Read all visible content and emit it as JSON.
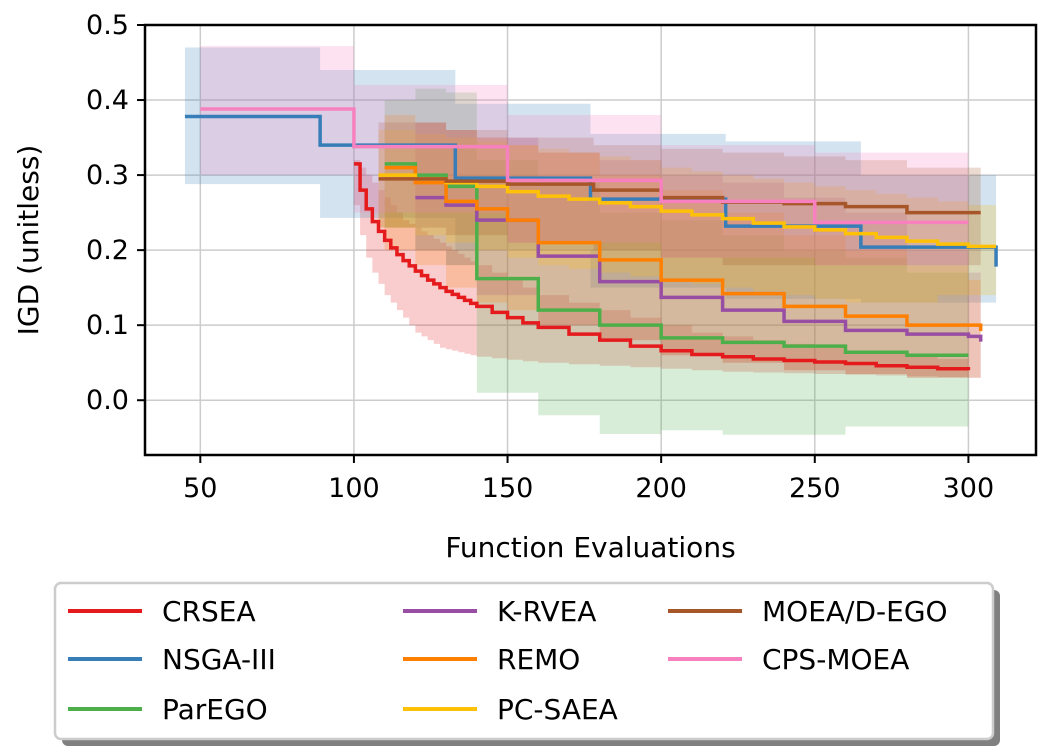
{
  "chart_data": {
    "type": "line",
    "title": "",
    "xlabel": "Function Evaluations",
    "ylabel": "IGD (unitless)",
    "xlim": [
      32,
      322
    ],
    "ylim": [
      -0.073,
      0.5
    ],
    "x_ticks": [
      50,
      100,
      150,
      200,
      250,
      300
    ],
    "x_tick_labels": [
      "50",
      "100",
      "150",
      "200",
      "250",
      "300"
    ],
    "y_ticks": [
      0.0,
      0.1,
      0.2,
      0.3,
      0.4,
      0.5
    ],
    "y_tick_labels": [
      "0.0",
      "0.1",
      "0.2",
      "0.3",
      "0.4",
      "0.5"
    ],
    "grid": true,
    "legend_position": "below",
    "legend_columns": 3,
    "series": [
      {
        "name": "CRSEA",
        "color": "#e41a1c",
        "x": [
          100,
          102,
          104,
          106,
          108,
          110,
          112,
          114,
          116,
          118,
          120,
          122,
          124,
          126,
          128,
          130,
          132,
          134,
          136,
          138,
          140,
          145,
          150,
          155,
          160,
          170,
          180,
          190,
          200,
          210,
          220,
          230,
          240,
          250,
          260,
          270,
          280,
          290,
          300
        ],
        "y": [
          0.315,
          0.28,
          0.255,
          0.238,
          0.225,
          0.213,
          0.203,
          0.194,
          0.186,
          0.179,
          0.172,
          0.166,
          0.16,
          0.155,
          0.15,
          0.145,
          0.141,
          0.137,
          0.133,
          0.129,
          0.125,
          0.117,
          0.11,
          0.103,
          0.097,
          0.088,
          0.08,
          0.072,
          0.066,
          0.061,
          0.058,
          0.055,
          0.053,
          0.051,
          0.049,
          0.046,
          0.044,
          0.042,
          0.04
        ],
        "lower": [
          0.26,
          0.22,
          0.19,
          0.17,
          0.155,
          0.14,
          0.13,
          0.12,
          0.11,
          0.1,
          0.09,
          0.085,
          0.08,
          0.075,
          0.07,
          0.068,
          0.066,
          0.064,
          0.062,
          0.06,
          0.058,
          0.056,
          0.054,
          0.052,
          0.05,
          0.048,
          0.046,
          0.044,
          0.042,
          0.04,
          0.038,
          0.037,
          0.036,
          0.035,
          0.034,
          0.033,
          0.032,
          0.031,
          0.03
        ],
        "upper": [
          0.32,
          0.31,
          0.3,
          0.29,
          0.28,
          0.27,
          0.26,
          0.25,
          0.24,
          0.235,
          0.23,
          0.225,
          0.22,
          0.215,
          0.21,
          0.205,
          0.2,
          0.195,
          0.19,
          0.185,
          0.18,
          0.17,
          0.16,
          0.15,
          0.14,
          0.13,
          0.12,
          0.11,
          0.1,
          0.09,
          0.085,
          0.08,
          0.075,
          0.07,
          0.066,
          0.062,
          0.058,
          0.055,
          0.052
        ],
        "x_end": 300
      },
      {
        "name": "NSGA-III",
        "color": "#377eb8",
        "x": [
          45,
          89,
          133,
          177,
          221,
          265
        ],
        "y": [
          0.378,
          0.34,
          0.296,
          0.268,
          0.232,
          0.204
        ],
        "lower": [
          0.288,
          0.243,
          0.2,
          0.15,
          0.135,
          0.13
        ],
        "upper": [
          0.47,
          0.44,
          0.395,
          0.355,
          0.345,
          0.3
        ],
        "x_end": 309,
        "y_end": 0.178
      },
      {
        "name": "ParEGO",
        "color": "#4daf4a",
        "x": [
          110,
          120,
          130,
          140,
          160,
          180,
          200,
          220,
          240,
          260,
          280
        ],
        "y": [
          0.315,
          0.3,
          0.285,
          0.162,
          0.12,
          0.1,
          0.083,
          0.077,
          0.072,
          0.064,
          0.06
        ],
        "lower": [
          0.23,
          0.2,
          0.18,
          0.01,
          -0.02,
          -0.045,
          -0.04,
          -0.046,
          -0.046,
          -0.035,
          -0.035
        ],
        "upper": [
          0.4,
          0.415,
          0.41,
          0.32,
          0.29,
          0.25,
          0.24,
          0.22,
          0.2,
          0.19,
          0.17
        ],
        "x_end": 300
      },
      {
        "name": "K-RVEA",
        "color": "#984ea3",
        "x": [
          120,
          130,
          140,
          160,
          180,
          200,
          220,
          240,
          260,
          280,
          300
        ],
        "y": [
          0.27,
          0.26,
          0.24,
          0.192,
          0.158,
          0.137,
          0.12,
          0.105,
          0.093,
          0.088,
          0.085
        ],
        "lower": [
          0.2,
          0.18,
          0.14,
          0.1,
          0.08,
          0.06,
          0.05,
          0.04,
          0.035,
          0.03,
          0.03
        ],
        "upper": [
          0.37,
          0.36,
          0.35,
          0.33,
          0.32,
          0.3,
          0.29,
          0.27,
          0.25,
          0.2,
          0.17
        ],
        "x_end": 304,
        "y_end": 0.078
      },
      {
        "name": "REMO",
        "color": "#ff7f00",
        "x": [
          110,
          120,
          130,
          140,
          150,
          160,
          180,
          200,
          220,
          240,
          260,
          280,
          300
        ],
        "y": [
          0.31,
          0.29,
          0.265,
          0.255,
          0.24,
          0.21,
          0.187,
          0.16,
          0.142,
          0.125,
          0.112,
          0.1,
          0.1
        ],
        "lower": [
          0.2,
          0.18,
          0.15,
          0.13,
          0.12,
          0.1,
          0.08,
          0.06,
          0.05,
          0.04,
          0.035,
          0.03,
          0.03
        ],
        "upper": [
          0.38,
          0.37,
          0.36,
          0.35,
          0.34,
          0.33,
          0.3,
          0.28,
          0.25,
          0.22,
          0.2,
          0.18,
          0.16
        ],
        "x_end": 304,
        "y_end": 0.092
      },
      {
        "name": "PC-SAEA",
        "color": "#ffc107",
        "x": [
          108,
          120,
          130,
          140,
          150,
          160,
          170,
          180,
          190,
          200,
          210,
          220,
          230,
          240,
          250,
          260,
          270,
          280,
          290,
          300
        ],
        "y": [
          0.3,
          0.295,
          0.29,
          0.285,
          0.278,
          0.272,
          0.268,
          0.263,
          0.258,
          0.252,
          0.247,
          0.242,
          0.236,
          0.231,
          0.227,
          0.222,
          0.217,
          0.212,
          0.208,
          0.205
        ],
        "lower": [
          0.23,
          0.22,
          0.21,
          0.2,
          0.19,
          0.18,
          0.175,
          0.17,
          0.165,
          0.16,
          0.155,
          0.15,
          0.145,
          0.14,
          0.135,
          0.13,
          0.13,
          0.13,
          0.14,
          0.14
        ],
        "upper": [
          0.36,
          0.355,
          0.35,
          0.345,
          0.34,
          0.335,
          0.33,
          0.325,
          0.32,
          0.31,
          0.305,
          0.3,
          0.295,
          0.29,
          0.285,
          0.28,
          0.275,
          0.27,
          0.265,
          0.26
        ],
        "x_end": 309
      },
      {
        "name": "MOEA/D-EGO",
        "color": "#a65628",
        "x": [
          108,
          130,
          150,
          178,
          200,
          220,
          240,
          260,
          280
        ],
        "y": [
          0.295,
          0.292,
          0.288,
          0.28,
          0.27,
          0.264,
          0.262,
          0.258,
          0.25
        ],
        "lower": [
          0.23,
          0.22,
          0.21,
          0.2,
          0.19,
          0.18,
          0.18,
          0.18,
          0.18
        ],
        "upper": [
          0.37,
          0.36,
          0.35,
          0.34,
          0.335,
          0.33,
          0.325,
          0.32,
          0.31
        ],
        "x_end": 304
      },
      {
        "name": "CPS-MOEA",
        "color": "#f781bf",
        "x": [
          50,
          100,
          150,
          200,
          250
        ],
        "y": [
          0.388,
          0.338,
          0.293,
          0.265,
          0.237
        ],
        "lower": [
          0.3,
          0.25,
          0.21,
          0.19,
          0.18
        ],
        "upper": [
          0.472,
          0.42,
          0.38,
          0.34,
          0.33
        ],
        "x_end": 300
      }
    ]
  }
}
